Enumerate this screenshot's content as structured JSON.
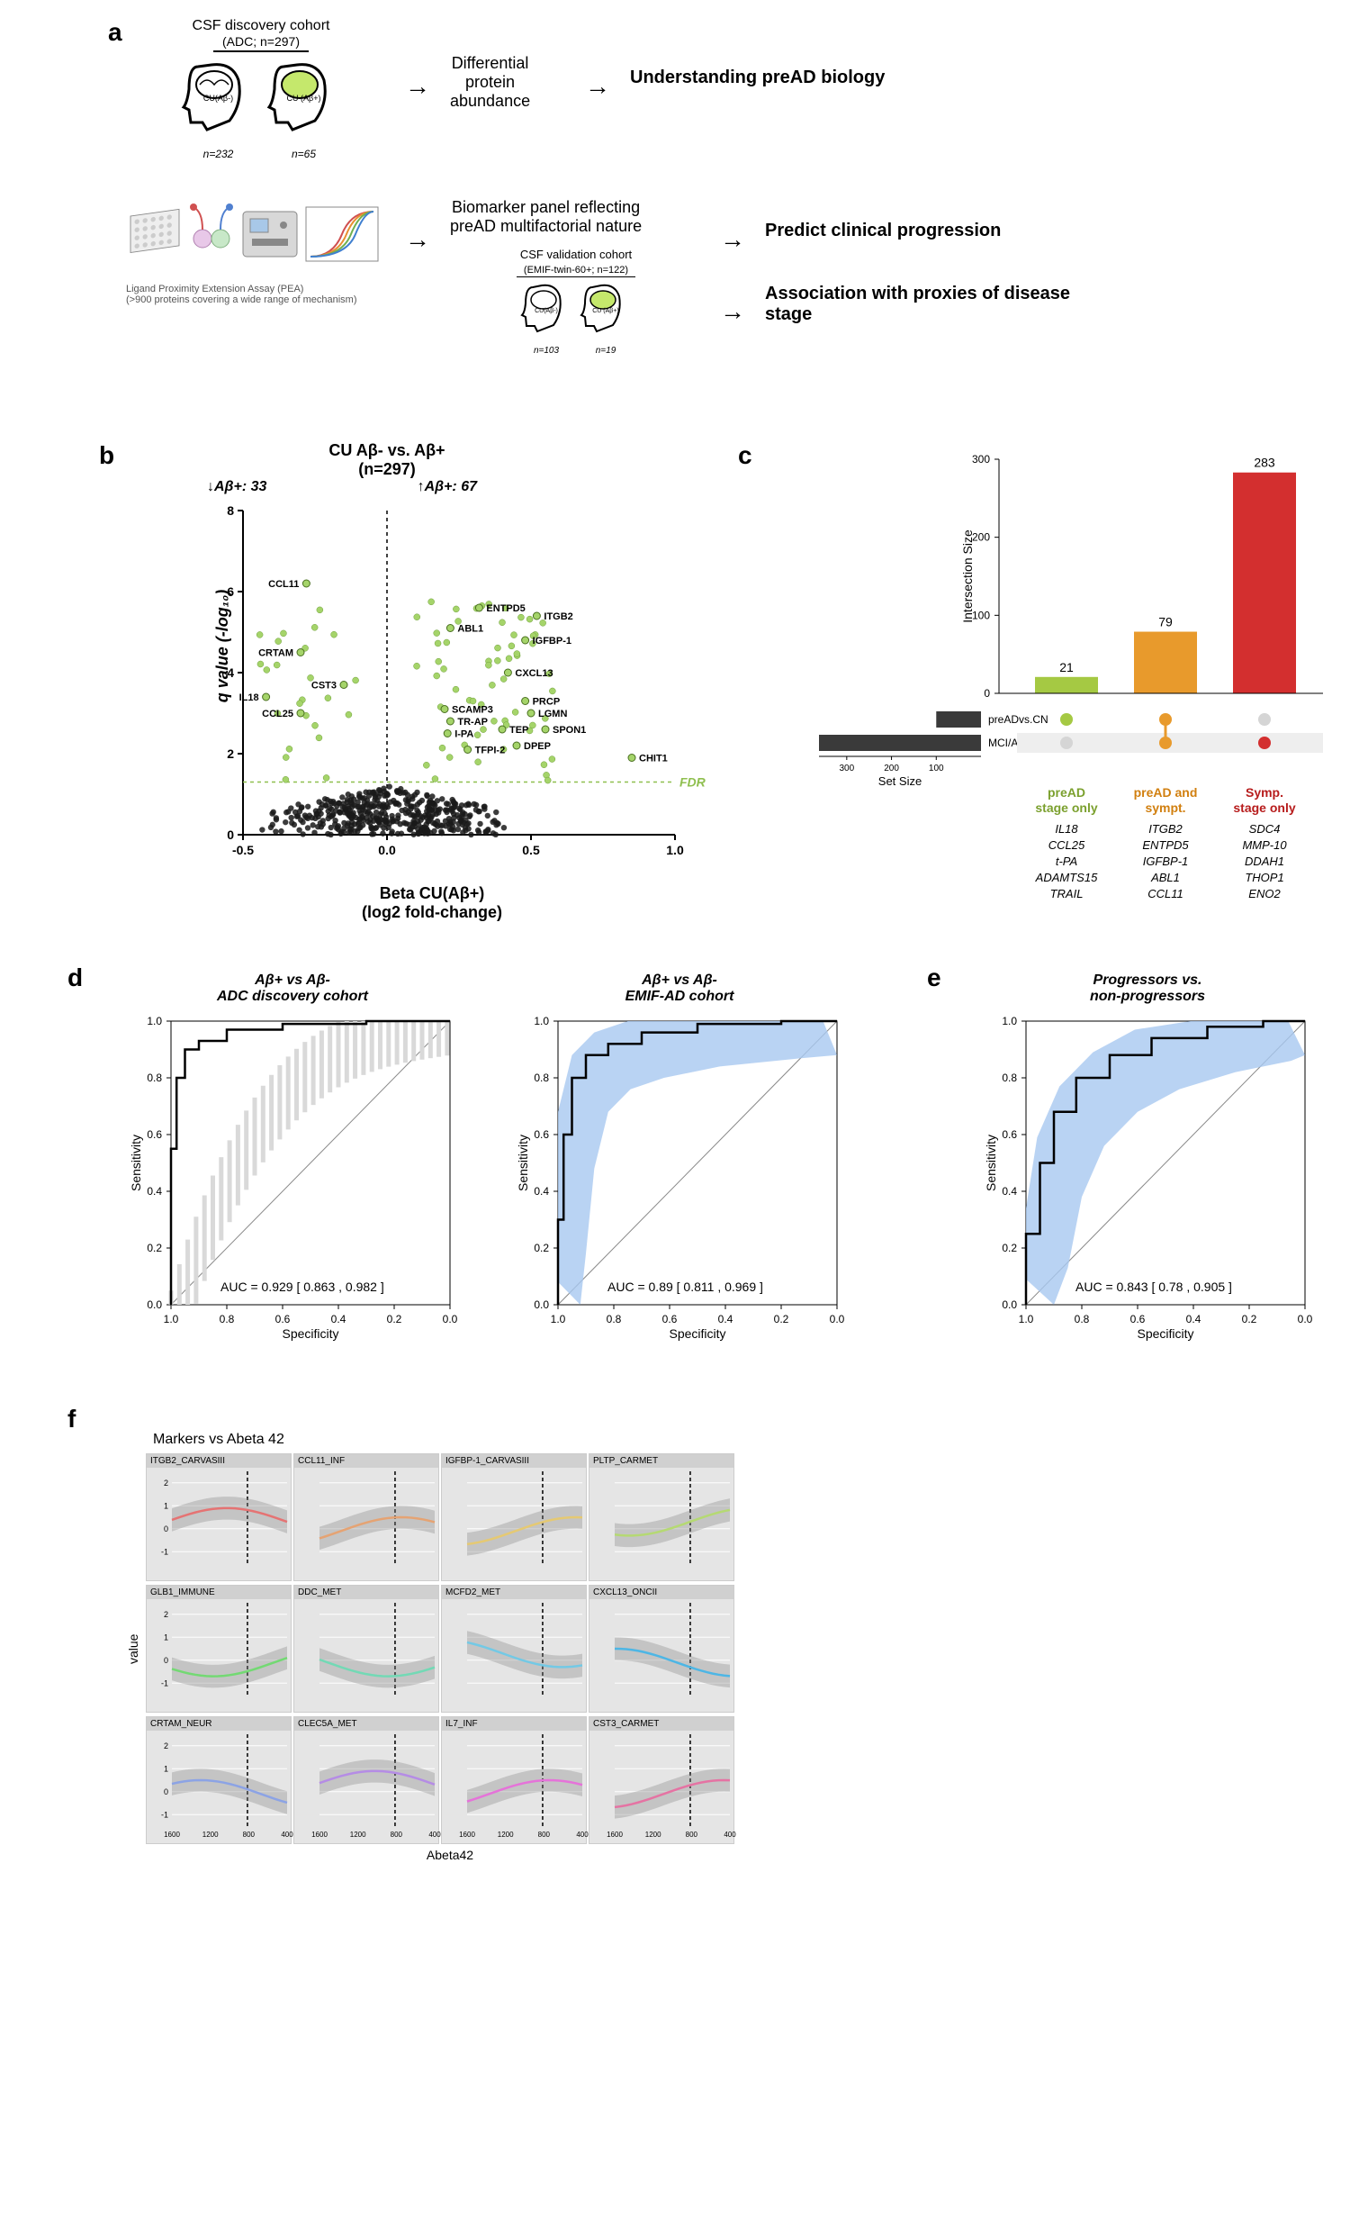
{
  "panelA": {
    "label": "a",
    "cohort1_title": "CSF discovery cohort",
    "cohort1_sub": "(ADC; n=297)",
    "cohort1_group1": "CU(Aβ-)",
    "cohort1_group1_n": "n=232",
    "cohort1_group2": "CU (Aβ+)",
    "cohort1_group2_n": "n=65",
    "arrow1_text": "Differential\nprotein\nabundance",
    "outcome1": "Understanding preAD biology",
    "assay_text": "Ligand Proximity Extension Assay (PEA)\n(>900 proteins covering a wide range of mechanism)",
    "arrow2_text": "Biomarker panel reflecting\npreAD multifactorial nature",
    "cohort2_title": "CSF validation cohort",
    "cohort2_sub": "(EMIF-twin-60+; n=122)",
    "cohort2_group1": "CU(Aβ-)",
    "cohort2_group1_n": "n=103",
    "cohort2_group2": "CU (Aβ+)",
    "cohort2_group2_n": "n=19",
    "outcome2": "Predict clinical progression",
    "outcome3": "Association with proxies of disease stage"
  },
  "panelB": {
    "label": "b",
    "title": "CU Aβ- vs. Aβ+",
    "subtitle": "(n=297)",
    "down_label": "↓Aβ+: 33",
    "up_label": "↑Aβ+: 67",
    "ylabel": "q value (-log₁₀)",
    "xlabel": "Beta CU(Aβ+)\n(log2 fold-change)",
    "fdr_label": "FDR",
    "xlim": [
      -0.5,
      1.0
    ],
    "ylim": [
      0,
      8
    ],
    "xticks": [
      -0.5,
      0.0,
      0.5,
      1.0
    ],
    "yticks": [
      0,
      2,
      4,
      6,
      8
    ],
    "fdr_y": 1.3,
    "sig_color": "#a5d46a",
    "nonsig_color": "#1a1a1a",
    "labeled_points": [
      {
        "name": "CCL11",
        "x": -0.28,
        "y": 6.2
      },
      {
        "name": "CRTAM",
        "x": -0.3,
        "y": 4.5
      },
      {
        "name": "IL18",
        "x": -0.42,
        "y": 3.4
      },
      {
        "name": "CCL25",
        "x": -0.3,
        "y": 3.0
      },
      {
        "name": "CST3",
        "x": -0.15,
        "y": 3.7
      },
      {
        "name": "ENTPD5",
        "x": 0.32,
        "y": 5.6
      },
      {
        "name": "ABL1",
        "x": 0.22,
        "y": 5.1
      },
      {
        "name": "ITGB2",
        "x": 0.52,
        "y": 5.4
      },
      {
        "name": "IGFBP-1",
        "x": 0.48,
        "y": 4.8
      },
      {
        "name": "CXCL13",
        "x": 0.42,
        "y": 4.0
      },
      {
        "name": "SCAMP3",
        "x": 0.2,
        "y": 3.1
      },
      {
        "name": "TR-AP",
        "x": 0.22,
        "y": 2.8
      },
      {
        "name": "I-PA",
        "x": 0.21,
        "y": 2.5
      },
      {
        "name": "TFPI-2",
        "x": 0.28,
        "y": 2.1
      },
      {
        "name": "PRCP",
        "x": 0.48,
        "y": 3.3
      },
      {
        "name": "LGMN",
        "x": 0.5,
        "y": 3.0
      },
      {
        "name": "TEP",
        "x": 0.4,
        "y": 2.6
      },
      {
        "name": "SPON1",
        "x": 0.55,
        "y": 2.6
      },
      {
        "name": "DPEP",
        "x": 0.45,
        "y": 2.2
      },
      {
        "name": "CHIT1",
        "x": 0.85,
        "y": 1.9
      }
    ]
  },
  "panelC": {
    "label": "c",
    "ylabel": "Intersection Size",
    "ylim": [
      0,
      300
    ],
    "yticks": [
      0,
      100,
      200,
      300
    ],
    "bars": [
      {
        "label": "preAD stage only",
        "value": 21,
        "color": "#a5c943",
        "txt_color": "#7ba02e"
      },
      {
        "label": "preAD and sympt.",
        "value": 79,
        "color": "#e89a2c",
        "txt_color": "#d17f0f"
      },
      {
        "label": "Symp. stage only",
        "value": 283,
        "color": "#d32f2f",
        "txt_color": "#b71c1c"
      }
    ],
    "setsize_label": "Set Size",
    "setsize_ticks": [
      300,
      200,
      100
    ],
    "row1_label": "preADvs.CN",
    "row2_label": "MCI/ADvs.CN",
    "row1_bar_width": 100,
    "row2_bar_width": 362,
    "proteins": {
      "col1": [
        "IL18",
        "CCL25",
        "t-PA",
        "ADAMTS15",
        "TRAIL"
      ],
      "col2": [
        "ITGB2",
        "ENTPD5",
        "IGFBP-1",
        "ABL1",
        "CCL11"
      ],
      "col3": [
        "SDC4",
        "MMP-10",
        "DDAH1",
        "THOP1",
        "ENO2"
      ]
    }
  },
  "panelD": {
    "label": "d",
    "plot1_title": "Aβ+ vs Aβ-\nADC discovery cohort",
    "plot1_auc": "AUC = 0.929 [ 0.863 , 0.982 ]",
    "plot2_title": "Aβ+ vs Aβ-\nEMIF-AD cohort",
    "plot2_auc": "AUC = 0.89 [ 0.811 , 0.969 ]",
    "xlabel": "Specificity",
    "ylabel": "Sensitivity",
    "ticks": [
      0.0,
      0.2,
      0.4,
      0.6,
      0.8,
      1.0
    ],
    "ci_color1": "#d9d9d9",
    "ci_color2": "#a8c8f0"
  },
  "panelE": {
    "label": "e",
    "title": "Progressors vs.\nnon-progressors",
    "auc": "AUC = 0.843 [ 0.78 , 0.905 ]",
    "xlabel": "Specificity",
    "ylabel": "Sensitivity",
    "ci_color": "#a8c8f0"
  },
  "panelF": {
    "label": "f",
    "title": "Markers vs Abeta 42",
    "xlabel": "Abeta42",
    "ylabel": "value",
    "xticks": [
      1600,
      1200,
      800,
      400
    ],
    "yticks": [
      -1,
      0,
      1,
      2
    ],
    "vline_x": 813,
    "bg_color": "#e5e5e5",
    "header_color": "#d0d0d0",
    "cells": [
      {
        "name": "ITGB2_CARVASIII",
        "color": "#e57373"
      },
      {
        "name": "CCL11_INF",
        "color": "#e5a373"
      },
      {
        "name": "IGFBP-1_CARVASIII",
        "color": "#e5c973"
      },
      {
        "name": "PLTP_CARMET",
        "color": "#b5d973"
      },
      {
        "name": "GLB1_IMMUNE",
        "color": "#73d973"
      },
      {
        "name": "DDC_MET",
        "color": "#73d9b5"
      },
      {
        "name": "MCFD2_MET",
        "color": "#73c9e5"
      },
      {
        "name": "CXCL13_ONCII",
        "color": "#4db6e5"
      },
      {
        "name": "CRTAM_NEUR",
        "color": "#8ca3e5"
      },
      {
        "name": "CLEC5A_MET",
        "color": "#b58ce5"
      },
      {
        "name": "IL7_INF",
        "color": "#e573d9"
      },
      {
        "name": "CST3_CARMET",
        "color": "#e573a3"
      }
    ]
  }
}
